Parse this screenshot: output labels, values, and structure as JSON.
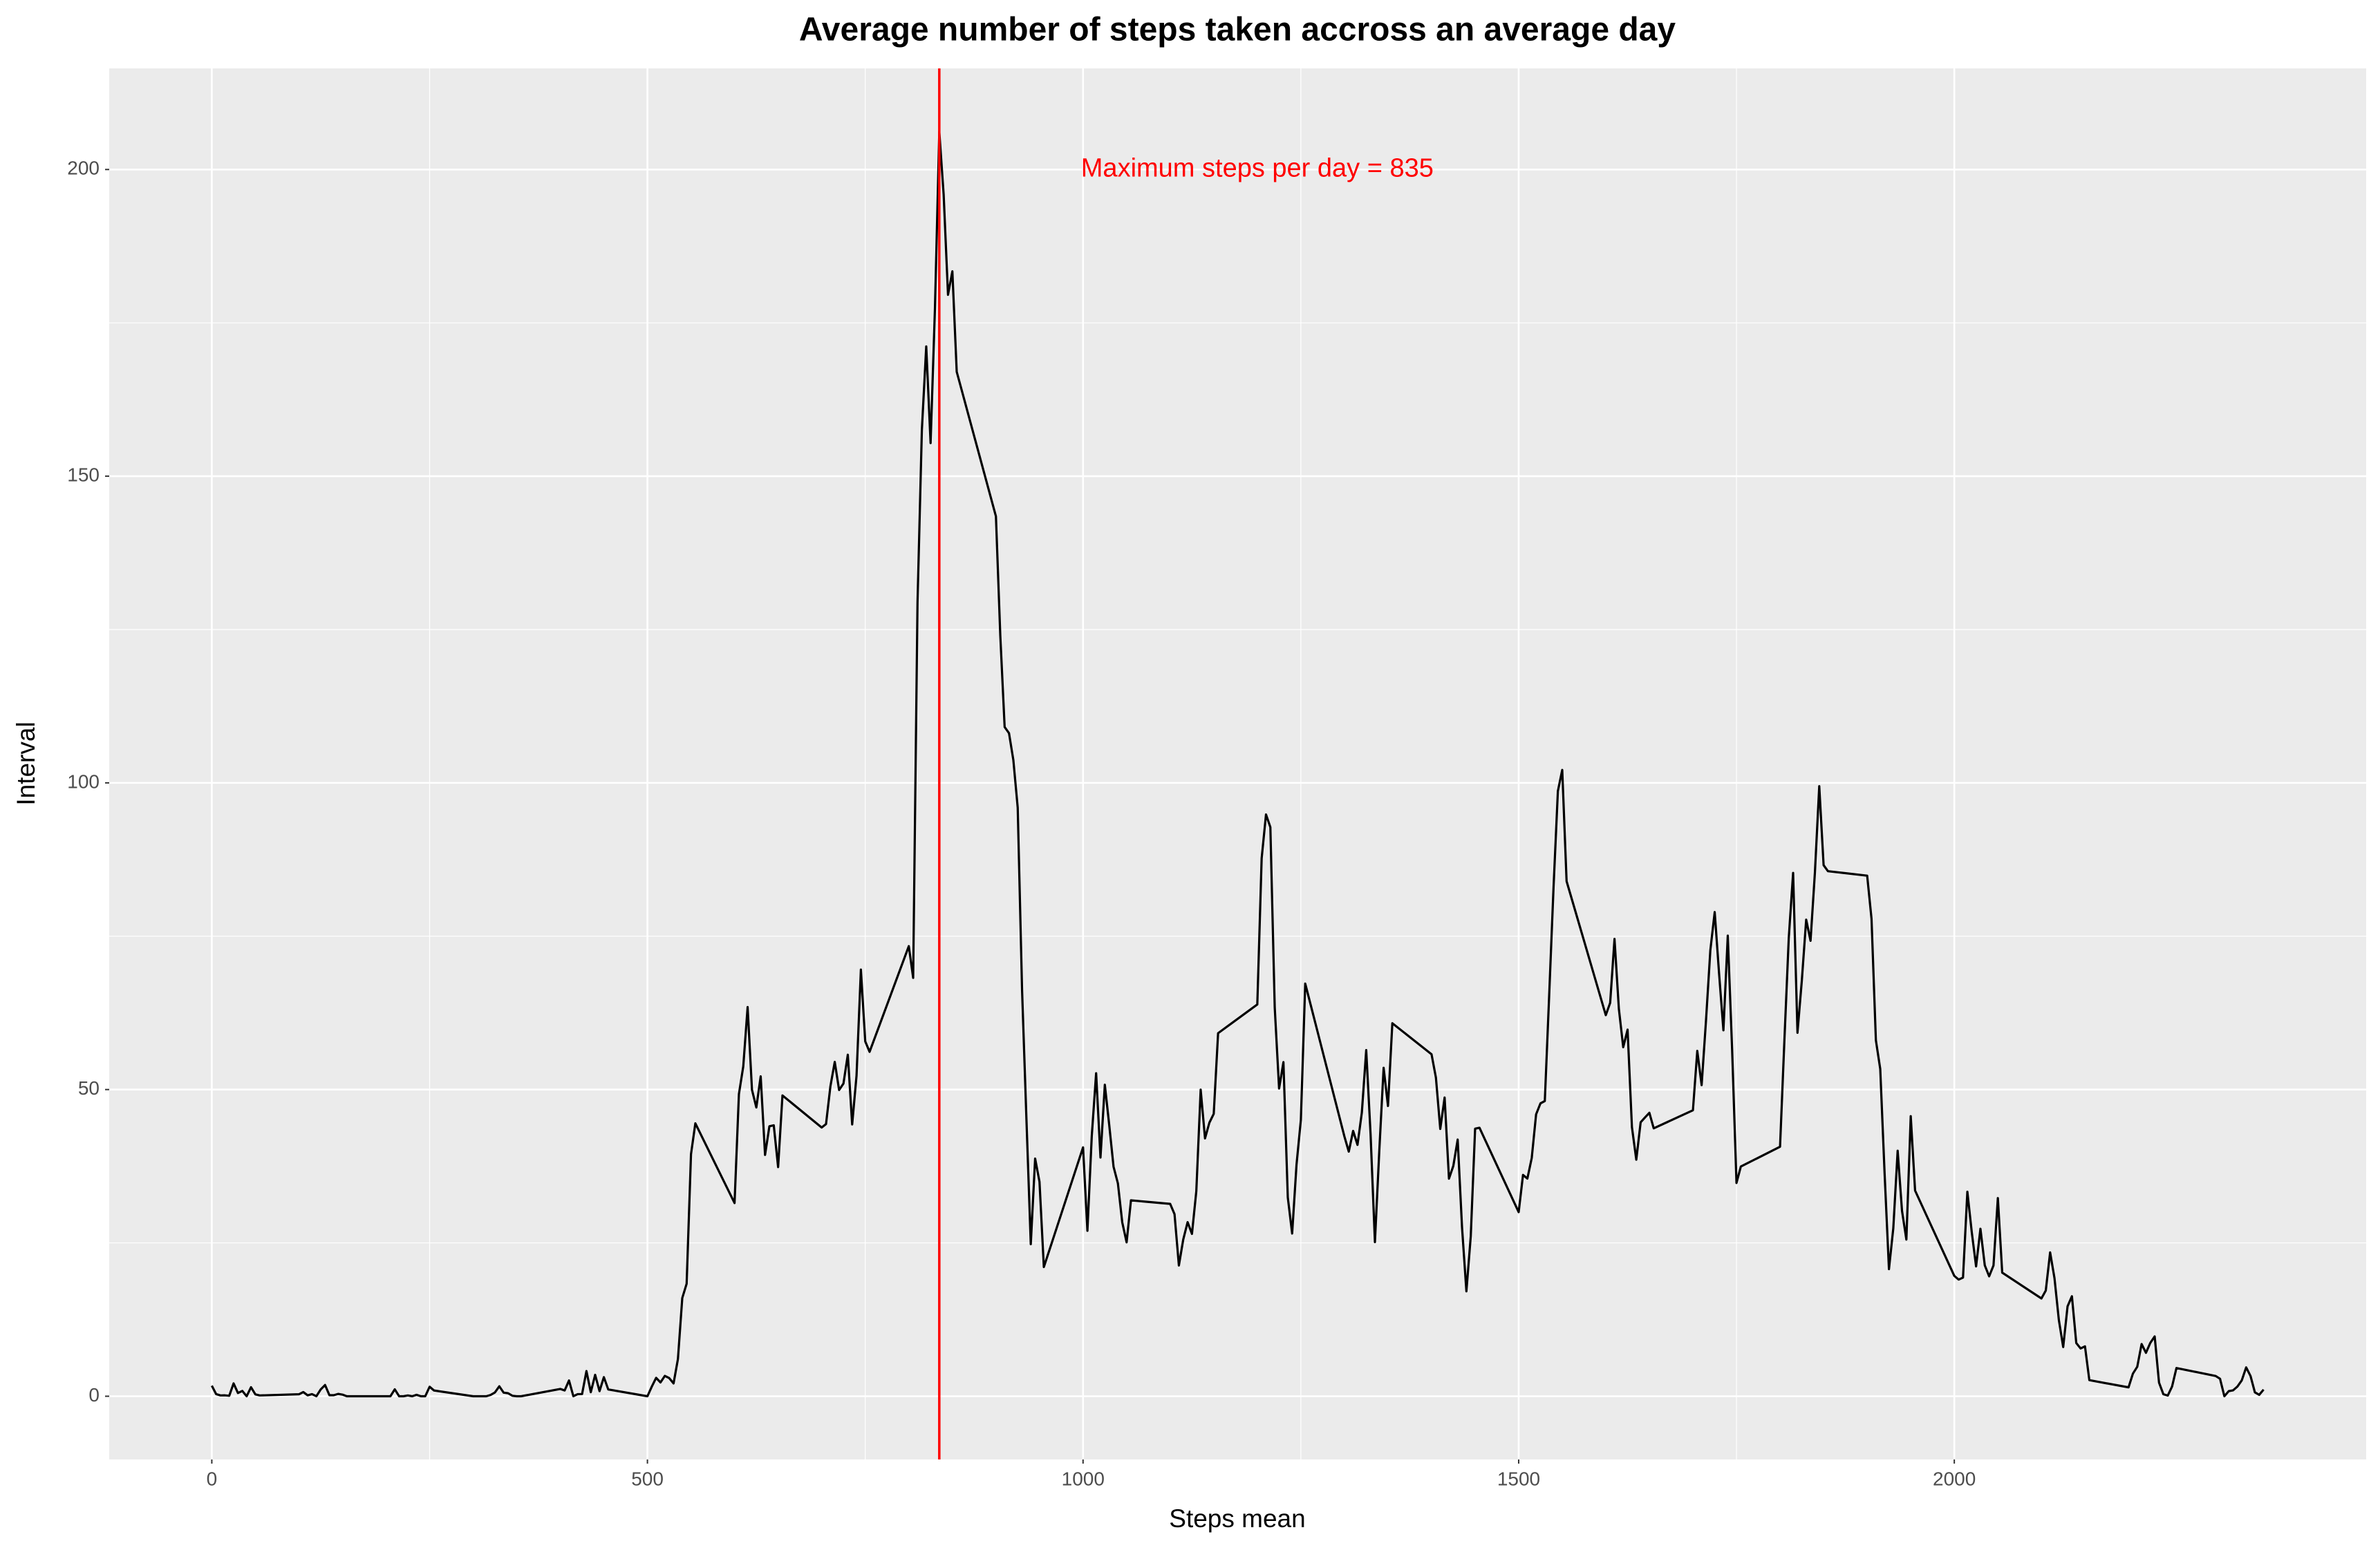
{
  "chart_data": {
    "type": "line",
    "title": "Average number of steps taken accross an average day",
    "x_label": "Steps mean",
    "y_label": "Interval",
    "annotation": "Maximum steps per day = 835",
    "vline": 835,
    "vline_color": "#ff0000",
    "color": "#000000",
    "grid": true,
    "xlim": [
      -117.75,
      2472.75
    ],
    "xticks": [
      0,
      500,
      1000,
      1500,
      2000
    ],
    "ylim": [
      -10.31,
      216.48
    ],
    "yticks": [
      0,
      50,
      100,
      150,
      200
    ],
    "x": [
      0,
      5,
      10,
      15,
      20,
      25,
      30,
      35,
      40,
      45,
      50,
      55,
      100,
      105,
      110,
      115,
      120,
      125,
      130,
      135,
      140,
      145,
      150,
      155,
      200,
      205,
      210,
      215,
      220,
      225,
      230,
      235,
      240,
      245,
      250,
      255,
      300,
      305,
      310,
      315,
      320,
      325,
      330,
      335,
      340,
      345,
      350,
      355,
      400,
      405,
      410,
      415,
      420,
      425,
      430,
      435,
      440,
      445,
      450,
      455,
      500,
      505,
      510,
      515,
      520,
      525,
      530,
      535,
      540,
      545,
      550,
      555,
      600,
      605,
      610,
      615,
      620,
      625,
      630,
      635,
      640,
      645,
      650,
      655,
      700,
      705,
      710,
      715,
      720,
      725,
      730,
      735,
      740,
      745,
      750,
      755,
      800,
      805,
      810,
      815,
      820,
      825,
      830,
      835,
      840,
      845,
      850,
      855,
      900,
      905,
      910,
      915,
      920,
      925,
      930,
      935,
      940,
      945,
      950,
      955,
      1000,
      1005,
      1010,
      1015,
      1020,
      1025,
      1030,
      1035,
      1040,
      1045,
      1050,
      1055,
      1100,
      1105,
      1110,
      1115,
      1120,
      1125,
      1130,
      1135,
      1140,
      1145,
      1150,
      1155,
      1200,
      1205,
      1210,
      1215,
      1220,
      1225,
      1230,
      1235,
      1240,
      1245,
      1250,
      1255,
      1300,
      1305,
      1310,
      1315,
      1320,
      1325,
      1330,
      1335,
      1340,
      1345,
      1350,
      1355,
      1400,
      1405,
      1410,
      1415,
      1420,
      1425,
      1430,
      1435,
      1440,
      1445,
      1450,
      1455,
      1500,
      1505,
      1510,
      1515,
      1520,
      1525,
      1530,
      1535,
      1540,
      1545,
      1550,
      1555,
      1600,
      1605,
      1610,
      1615,
      1620,
      1625,
      1630,
      1635,
      1640,
      1645,
      1650,
      1655,
      1700,
      1705,
      1710,
      1715,
      1720,
      1725,
      1730,
      1735,
      1740,
      1745,
      1750,
      1755,
      1800,
      1805,
      1810,
      1815,
      1820,
      1825,
      1830,
      1835,
      1840,
      1845,
      1850,
      1855,
      1900,
      1905,
      1910,
      1915,
      1920,
      1925,
      1930,
      1935,
      1940,
      1945,
      1950,
      1955,
      2000,
      2005,
      2010,
      2015,
      2020,
      2025,
      2030,
      2035,
      2040,
      2045,
      2050,
      2055,
      2100,
      2105,
      2110,
      2115,
      2120,
      2125,
      2130,
      2135,
      2140,
      2145,
      2150,
      2155,
      2200,
      2205,
      2210,
      2215,
      2220,
      2225,
      2230,
      2235,
      2240,
      2245,
      2250,
      2255,
      2300,
      2305,
      2310,
      2315,
      2320,
      2325,
      2330,
      2335,
      2340,
      2345,
      2350,
      2355
    ],
    "values": [
      1.72,
      0.34,
      0.13,
      0.15,
      0.08,
      2.09,
      0.53,
      0.87,
      0,
      1.47,
      0.3,
      0.13,
      0.32,
      0.68,
      0.15,
      0.34,
      0,
      1.11,
      1.83,
      0.17,
      0.17,
      0.38,
      0.26,
      0,
      0,
      0,
      1.13,
      0,
      0,
      0.13,
      0,
      0.23,
      0,
      0,
      1.55,
      0.94,
      0,
      0,
      0,
      0,
      0.21,
      0.62,
      1.62,
      0.58,
      0.49,
      0.08,
      0,
      0,
      1.19,
      0.94,
      2.57,
      0,
      0.34,
      0.36,
      4.11,
      0.66,
      3.49,
      0.83,
      3.11,
      1.11,
      0,
      1.57,
      3,
      2.25,
      3.32,
      2.96,
      2.09,
      6.06,
      16.02,
      18.34,
      39.45,
      44.49,
      31.49,
      49.26,
      53.77,
      63.45,
      49.96,
      47.08,
      52.15,
      39.34,
      44.02,
      44.17,
      37.36,
      49.04,
      43.81,
      44.38,
      50.51,
      54.51,
      49.92,
      50.98,
      55.68,
      44.32,
      52.26,
      69.55,
      57.85,
      56.15,
      73.38,
      68.21,
      129.43,
      157.53,
      171.15,
      155.4,
      177.3,
      206.17,
      195.92,
      179.57,
      183.4,
      167.02,
      143.45,
      124.04,
      109.11,
      108.11,
      103.72,
      95.96,
      66.21,
      45.23,
      24.79,
      38.75,
      34.98,
      21.06,
      40.57,
      26.98,
      42.42,
      52.66,
      38.92,
      50.79,
      44.28,
      37.42,
      34.7,
      28.34,
      25.09,
      31.94,
      31.36,
      29.68,
      21.32,
      25.55,
      28.38,
      26.47,
      33.43,
      49.98,
      42.04,
      44.6,
      46.04,
      59.19,
      63.87,
      87.7,
      94.85,
      92.77,
      63.4,
      50.17,
      54.47,
      32.42,
      26.53,
      37.74,
      45.06,
      67.28,
      42.34,
      39.88,
      43.26,
      40.98,
      46.25,
      56.43,
      42.75,
      25.13,
      39.96,
      53.55,
      47.32,
      60.81,
      55.75,
      51.96,
      43.58,
      48.7,
      35.47,
      37.55,
      41.85,
      27.51,
      17.11,
      26.08,
      43.62,
      43.77,
      30.02,
      36.08,
      35.49,
      38.85,
      45.96,
      47.75,
      48.13,
      65.32,
      82.91,
      98.66,
      102.11,
      83.96,
      62.13,
      64.13,
      74.55,
      63.17,
      56.91,
      59.77,
      43.87,
      38.57,
      44.66,
      45.45,
      46.21,
      43.68,
      46.62,
      56.3,
      50.72,
      61.23,
      72.72,
      78.94,
      68.94,
      59.66,
      75.09,
      56.51,
      34.77,
      37.45,
      40.68,
      58.02,
      74.7,
      85.32,
      59.26,
      67.77,
      77.7,
      74.25,
      85.34,
      99.45,
      86.58,
      85.6,
      84.87,
      77.83,
      58.04,
      53.36,
      36.33,
      20.72,
      27.4,
      40.02,
      30.21,
      25.55,
      45.66,
      33.53,
      19.62,
      19.02,
      19.34,
      33.34,
      26.81,
      21.17,
      27.3,
      21.34,
      19.55,
      21.32,
      32.3,
      20.15,
      15.94,
      17.23,
      23.45,
      19.25,
      12.45,
      8.02,
      14.66,
      16.3,
      8.68,
      7.79,
      8.13,
      2.62,
      1.45,
      3.68,
      4.81,
      8.51,
      7.08,
      8.7,
      9.75,
      2.21,
      0.32,
      0.11,
      1.6,
      4.6,
      3.3,
      2.85,
      0,
      0.83,
      0.96,
      1.58,
      2.6,
      4.7,
      3.3,
      0.64,
      0.23,
      1.08
    ]
  }
}
